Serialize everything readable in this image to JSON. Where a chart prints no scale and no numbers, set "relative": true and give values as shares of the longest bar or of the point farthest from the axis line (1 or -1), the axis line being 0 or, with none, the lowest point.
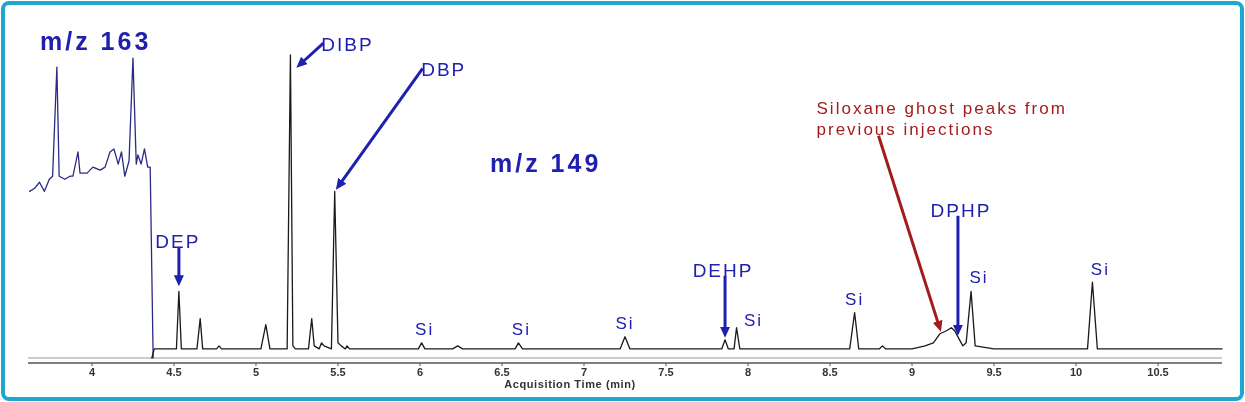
{
  "chart_data": {
    "type": "line",
    "relative": true,
    "xlabel": "Acquisition Time (min)",
    "xlim": [
      3.61,
      10.89
    ],
    "xticks": [
      4,
      4.5,
      5,
      5.5,
      6,
      6.5,
      7,
      7.5,
      8,
      8.5,
      9,
      9.5,
      10,
      10.5
    ],
    "series": [
      {
        "color": "#2b2b86",
        "x": [
          3.62,
          3.65,
          3.68,
          3.71,
          3.74,
          3.76,
          3.786,
          3.8,
          3.835,
          3.866,
          3.884,
          3.915,
          3.927,
          3.97,
          4.006,
          4.05,
          4.08,
          4.11,
          4.134,
          4.16,
          4.18,
          4.2,
          4.226,
          4.25,
          4.27,
          4.28,
          4.3,
          4.32,
          4.34,
          4.355,
          4.373
        ],
        "values": [
          0.55,
          0.56,
          0.58,
          0.55,
          0.59,
          0.6,
          0.96,
          0.6,
          0.59,
          0.6,
          0.6,
          0.68,
          0.61,
          0.61,
          0.63,
          0.62,
          0.63,
          0.68,
          0.69,
          0.64,
          0.68,
          0.6,
          0.65,
          0.99,
          0.64,
          0.67,
          0.64,
          0.69,
          0.63,
          0.63,
          0
        ]
      },
      {
        "color": "#1a1a1a",
        "x": [
          4.365,
          4.38,
          4.5,
          4.515,
          4.53,
          4.545,
          4.64,
          4.66,
          4.675,
          4.76,
          4.775,
          4.79,
          5.03,
          5.06,
          5.085,
          5.19,
          5.21,
          5.225,
          5.24,
          5.32,
          5.34,
          5.355,
          5.385,
          5.4,
          5.415,
          5.46,
          5.48,
          5.5,
          5.52,
          5.545,
          5.555,
          5.57,
          5.65,
          5.7,
          5.8,
          5.9,
          5.99,
          6.01,
          6.03,
          6.2,
          6.23,
          6.26,
          6.45,
          6.58,
          6.6,
          6.625,
          6.8,
          6.9,
          7,
          7.22,
          7.25,
          7.28,
          7.4,
          7.5,
          7.6,
          7.7,
          7.84,
          7.86,
          7.88,
          7.915,
          7.93,
          7.95,
          8.1,
          8.3,
          8.5,
          8.62,
          8.65,
          8.675,
          8.8,
          8.82,
          8.84,
          9,
          9.08,
          9.13,
          9.17,
          9.21,
          9.24,
          9.26,
          9.29,
          9.31,
          9.33,
          9.36,
          9.385,
          9.5,
          9.7,
          9.85,
          9.95,
          10.07,
          10.1,
          10.13,
          10.3,
          10.5,
          10.7,
          10.89
        ],
        "values": [
          0,
          0.03,
          0.03,
          0.03,
          0.22,
          0.03,
          0.03,
          0.13,
          0.03,
          0.03,
          0.04,
          0.03,
          0.03,
          0.11,
          0.03,
          0.03,
          1,
          0.04,
          0.03,
          0.03,
          0.13,
          0.04,
          0.03,
          0.05,
          0.04,
          0.03,
          0.55,
          0.05,
          0.04,
          0.03,
          0.04,
          0.03,
          0.03,
          0.03,
          0.03,
          0.03,
          0.03,
          0.05,
          0.03,
          0.03,
          0.04,
          0.03,
          0.03,
          0.03,
          0.05,
          0.03,
          0.03,
          0.03,
          0.03,
          0.03,
          0.07,
          0.03,
          0.03,
          0.03,
          0.03,
          0.03,
          0.03,
          0.06,
          0.03,
          0.03,
          0.1,
          0.03,
          0.03,
          0.03,
          0.03,
          0.03,
          0.15,
          0.03,
          0.03,
          0.04,
          0.03,
          0.03,
          0.04,
          0.05,
          0.08,
          0.09,
          0.1,
          0.09,
          0.06,
          0.04,
          0.05,
          0.22,
          0.04,
          0.03,
          0.03,
          0.03,
          0.03,
          0.03,
          0.25,
          0.03,
          0.03,
          0.03,
          0.03,
          0.03
        ]
      }
    ],
    "annotations": [
      "m/z 163",
      "m/z 149",
      {
        "text": "DEP",
        "x": 4.53,
        "y": 0.22
      },
      {
        "text": "DIBP",
        "x": 5.21,
        "y": 0.94
      },
      {
        "text": "DBP",
        "x": 5.48,
        "y": 0.55
      },
      {
        "text": "Si",
        "x": 6.01,
        "y": 0.05
      },
      {
        "text": "Si",
        "x": 6.6,
        "y": 0.05
      },
      {
        "text": "Si",
        "x": 7.25,
        "y": 0.07
      },
      {
        "text": "DEHP",
        "x": 7.86,
        "y": 0.06
      },
      {
        "text": "Si",
        "x": 7.93,
        "y": 0.1
      },
      {
        "text": "Si",
        "x": 8.65,
        "y": 0.15
      },
      {
        "text": "Siloxane ghost peaks from previous injections",
        "x": 9.18,
        "y": 0.08
      },
      {
        "text": "DPHP",
        "x": 9.28,
        "y": 0.07
      },
      {
        "text": "Si",
        "x": 9.36,
        "y": 0.22
      },
      {
        "text": "Si",
        "x": 10.1,
        "y": 0.25
      }
    ]
  }
}
